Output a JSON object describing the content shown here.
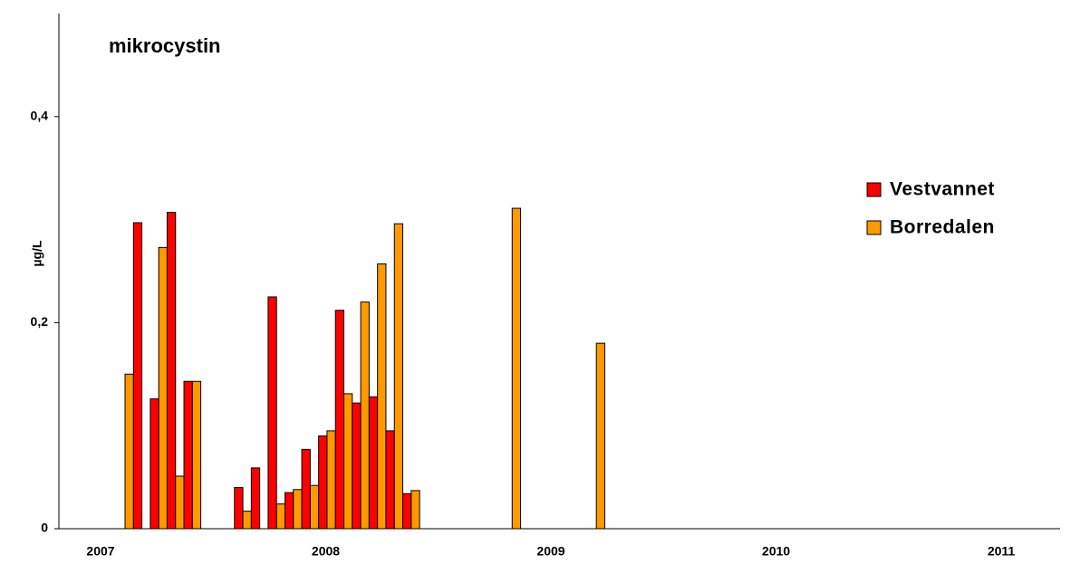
{
  "chart_data": {
    "type": "bar",
    "title": "mikrocystin",
    "y_label": "µg/L",
    "categories": [
      null,
      null,
      null,
      null,
      null,
      null,
      null,
      null,
      null,
      null,
      null,
      null,
      null,
      null,
      null,
      null,
      null,
      null,
      null,
      null,
      null,
      null,
      null,
      null,
      null,
      null,
      null,
      null,
      null,
      null,
      null,
      null,
      null,
      null,
      null,
      null,
      null,
      null,
      null,
      null,
      null,
      null,
      null,
      null,
      null,
      null,
      null,
      null,
      null,
      null,
      null,
      null,
      null,
      null,
      null,
      null,
      null,
      null,
      null
    ],
    "x_labels": [
      "2007",
      "2008",
      "2009",
      "2010",
      "2011"
    ],
    "series": [
      {
        "name": "Vestvannet",
        "color": "#ff0000",
        "values": [
          null,
          null,
          null,
          null,
          0.297,
          0.126,
          0.307,
          0.143,
          null,
          null,
          0.04,
          0.059,
          0.225,
          0.035,
          0.077,
          0.09,
          0.212,
          0.122,
          0.128,
          0.095,
          0.034,
          null,
          null,
          null,
          null,
          null,
          null,
          null,
          null,
          null,
          null,
          null,
          null,
          null,
          null,
          null,
          null,
          null,
          null,
          null,
          null,
          null,
          null,
          null,
          null,
          null,
          null,
          null,
          null,
          null,
          null,
          null,
          null,
          null,
          null,
          null,
          null,
          null,
          null
        ]
      },
      {
        "name": "Borredalen",
        "color": "#ff9900",
        "values": [
          null,
          null,
          null,
          0.15,
          null,
          0.273,
          0.051,
          0.143,
          null,
          null,
          0.017,
          null,
          0.024,
          0.038,
          0.042,
          0.095,
          0.131,
          0.22,
          0.257,
          0.296,
          0.037,
          null,
          null,
          null,
          null,
          null,
          0.311,
          null,
          null,
          null,
          null,
          0.18,
          null,
          null,
          null,
          null,
          null,
          null,
          null,
          null,
          null,
          null,
          null,
          null,
          null,
          null,
          null,
          null,
          null,
          null,
          null,
          null,
          null,
          null,
          null,
          null,
          null,
          null,
          null
        ]
      }
    ],
    "ylim": [
      0,
      0.5
    ],
    "yticks": [
      {
        "value": 0,
        "label": "0"
      },
      {
        "value": 0.2,
        "label": "0,2"
      },
      {
        "value": 0.4,
        "label": "0,4"
      }
    ],
    "grid": false
  }
}
